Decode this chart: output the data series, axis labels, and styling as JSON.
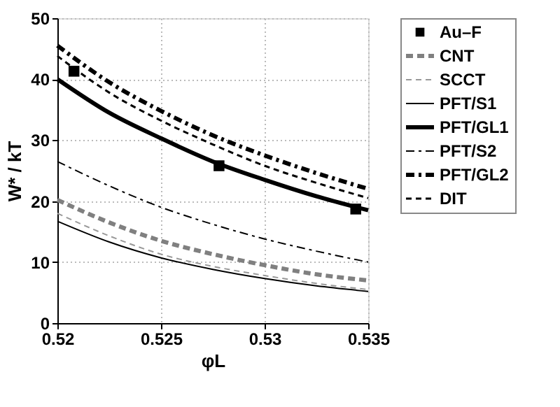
{
  "chart_data": {
    "type": "line",
    "xlabel": "φL",
    "ylabel": "W* / kT",
    "xlim": [
      0.52,
      0.535
    ],
    "xticks": [
      0.52,
      0.525,
      0.53,
      0.535
    ],
    "ylim": [
      0,
      50
    ],
    "yticks": [
      0,
      10,
      20,
      30,
      40,
      50
    ],
    "grid": true,
    "legend": "top right",
    "x": [
      0.52,
      0.5225,
      0.525,
      0.5275,
      0.53,
      0.5325,
      0.535
    ],
    "series": [
      {
        "name": "Au–F",
        "type": "scatter",
        "marker": "square",
        "color": "#000000",
        "x": [
          0.5208,
          0.5278,
          0.5344
        ],
        "values": [
          41.3,
          25.8,
          18.7
        ]
      },
      {
        "name": "CNT",
        "color": "#808080",
        "line_style": "dashed",
        "values": [
          20.2,
          16.5,
          13.5,
          11.3,
          9.5,
          8,
          7
        ]
      },
      {
        "name": "SCCT",
        "color": "#999999",
        "line_style": "dashed",
        "values": [
          18,
          14.3,
          11.3,
          9.3,
          7.8,
          6.5,
          5.5
        ]
      },
      {
        "name": "PFT/S1",
        "color": "#000000",
        "line_style": "solid",
        "values": [
          16.7,
          13.3,
          10.7,
          8.8,
          7.3,
          6.1,
          5.2
        ]
      },
      {
        "name": "PFT/GL1",
        "color": "#000000",
        "line_style": "solid",
        "values": [
          40,
          34.5,
          30.3,
          26.5,
          23.5,
          20.8,
          18.5
        ]
      },
      {
        "name": "PFT/S2",
        "color": "#000000",
        "line_style": "dashed",
        "values": [
          26.5,
          22.5,
          19,
          16.2,
          13.8,
          11.8,
          10
        ]
      },
      {
        "name": "PFT/GL2",
        "color": "#000000",
        "line_style": "dashed",
        "values": [
          45.5,
          39.5,
          34.8,
          30.8,
          27.5,
          24.6,
          22
        ]
      },
      {
        "name": "DIT",
        "color": "#000000",
        "line_style": "dashed",
        "values": [
          43.8,
          37.8,
          33.2,
          29.3,
          25.8,
          23,
          20.5
        ]
      }
    ]
  }
}
